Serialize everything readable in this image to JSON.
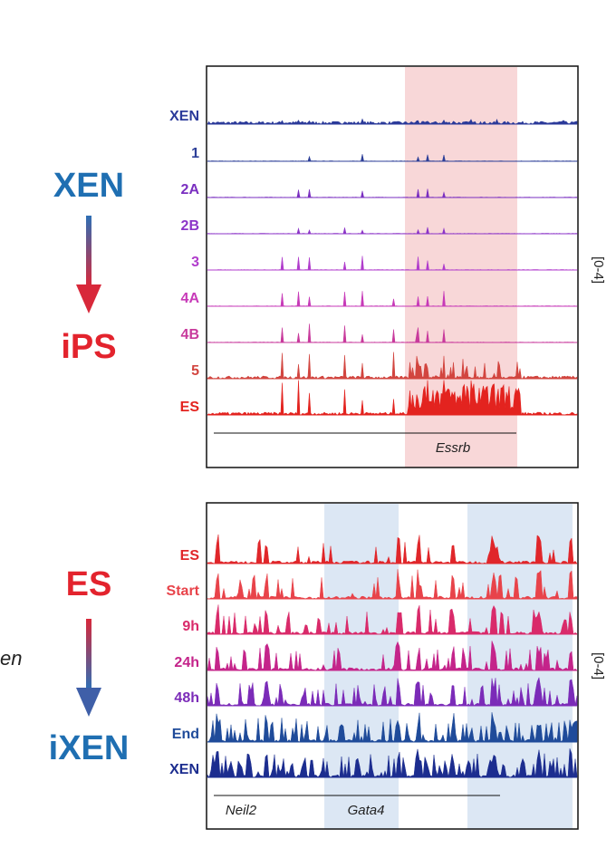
{
  "panel_a": {
    "from": "XEN",
    "to": "iPS",
    "range": "[0-4]",
    "gene": "Essrb",
    "tracks": [
      {
        "name": "XEN",
        "color": "#2b3a9a"
      },
      {
        "name": "1",
        "color": "#2d3f98"
      },
      {
        "name": "2A",
        "color": "#7a2fc0"
      },
      {
        "name": "2B",
        "color": "#8c35c8"
      },
      {
        "name": "3",
        "color": "#b03ccc"
      },
      {
        "name": "4A",
        "color": "#c73ab8"
      },
      {
        "name": "4B",
        "color": "#c83a9c"
      },
      {
        "name": "5",
        "color": "#d2453f"
      },
      {
        "name": "ES",
        "color": "#e3231f"
      }
    ]
  },
  "panel_b": {
    "from": "ES",
    "to": "iXEN",
    "range": "[0-4]",
    "genes": [
      "Neil2",
      "Gata4"
    ],
    "tracks": [
      {
        "name": "ES",
        "color": "#e0262a"
      },
      {
        "name": "Start",
        "color": "#e8434a"
      },
      {
        "name": "9h",
        "color": "#d92a6a"
      },
      {
        "name": "24h",
        "color": "#c4248a"
      },
      {
        "name": "48h",
        "color": "#7b2bb8"
      },
      {
        "name": "End",
        "color": "#1f4b9a"
      },
      {
        "name": "XEN",
        "color": "#1c2d8f"
      }
    ]
  },
  "fragment": "en"
}
